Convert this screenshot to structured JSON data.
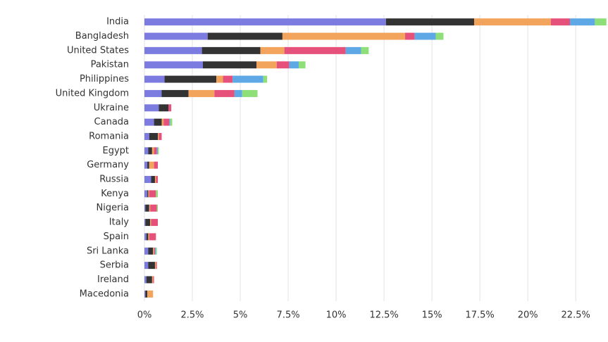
{
  "chart_data": {
    "type": "stacked-bar-horizontal",
    "categories": [
      "India",
      "Bangladesh",
      "United States",
      "Pakistan",
      "Philippines",
      "United Kingdom",
      "Ukraine",
      "Canada",
      "Romania",
      "Egypt",
      "Germany",
      "Russia",
      "Kenya",
      "Nigeria",
      "Italy",
      "Spain",
      "Sri Lanka",
      "Serbia",
      "Ireland",
      "Macedonia"
    ],
    "series": [
      {
        "color": "#7c7be0",
        "values": [
          12.6,
          3.3,
          3.0,
          3.05,
          1.05,
          0.9,
          0.75,
          0.5,
          0.25,
          0.2,
          0.15,
          0.35,
          0.15,
          0.05,
          0.05,
          0.1,
          0.2,
          0.2,
          0.1,
          0.05
        ]
      },
      {
        "color": "#333333",
        "values": [
          4.6,
          3.9,
          3.05,
          2.8,
          2.7,
          1.4,
          0.5,
          0.4,
          0.45,
          0.2,
          0.1,
          0.2,
          0.05,
          0.2,
          0.25,
          0.1,
          0.25,
          0.35,
          0.3,
          0.1
        ]
      },
      {
        "color": "#f2a35c",
        "values": [
          4.0,
          6.4,
          1.25,
          1.05,
          0.35,
          1.35,
          0,
          0.1,
          0.05,
          0.1,
          0.25,
          0.05,
          0.05,
          0.05,
          0.05,
          0.05,
          0.05,
          0.05,
          0.05,
          0.3
        ]
      },
      {
        "color": "#e5517a",
        "values": [
          1.0,
          0.5,
          3.2,
          0.65,
          0.5,
          1.05,
          0.15,
          0.3,
          0.15,
          0.15,
          0.2,
          0.1,
          0.35,
          0.35,
          0.35,
          0.35,
          0.05,
          0.05,
          0.05,
          0
        ]
      },
      {
        "color": "#5fa8e6",
        "values": [
          1.3,
          1.1,
          0.8,
          0.5,
          1.6,
          0.4,
          0,
          0.05,
          0,
          0.05,
          0,
          0,
          0,
          0,
          0,
          0,
          0.05,
          0,
          0,
          0
        ]
      },
      {
        "color": "#8fdf78",
        "values": [
          0.6,
          0.4,
          0.4,
          0.35,
          0.2,
          0.8,
          0,
          0.1,
          0,
          0.05,
          0,
          0,
          0.1,
          0.05,
          0,
          0,
          0.05,
          0,
          0,
          0
        ]
      }
    ],
    "xlim": [
      0,
      24
    ],
    "xticks": [
      {
        "value": 0,
        "label": "0%"
      },
      {
        "value": 2.5,
        "label": "2.5%"
      },
      {
        "value": 5,
        "label": "5%"
      },
      {
        "value": 7.5,
        "label": "7.5%"
      },
      {
        "value": 10,
        "label": "10%"
      },
      {
        "value": 12.5,
        "label": "12.5%"
      },
      {
        "value": 15,
        "label": "15%"
      },
      {
        "value": 17.5,
        "label": "17.5%"
      },
      {
        "value": 20,
        "label": "20%"
      },
      {
        "value": 22.5,
        "label": "22.5%"
      }
    ],
    "grid": true
  }
}
